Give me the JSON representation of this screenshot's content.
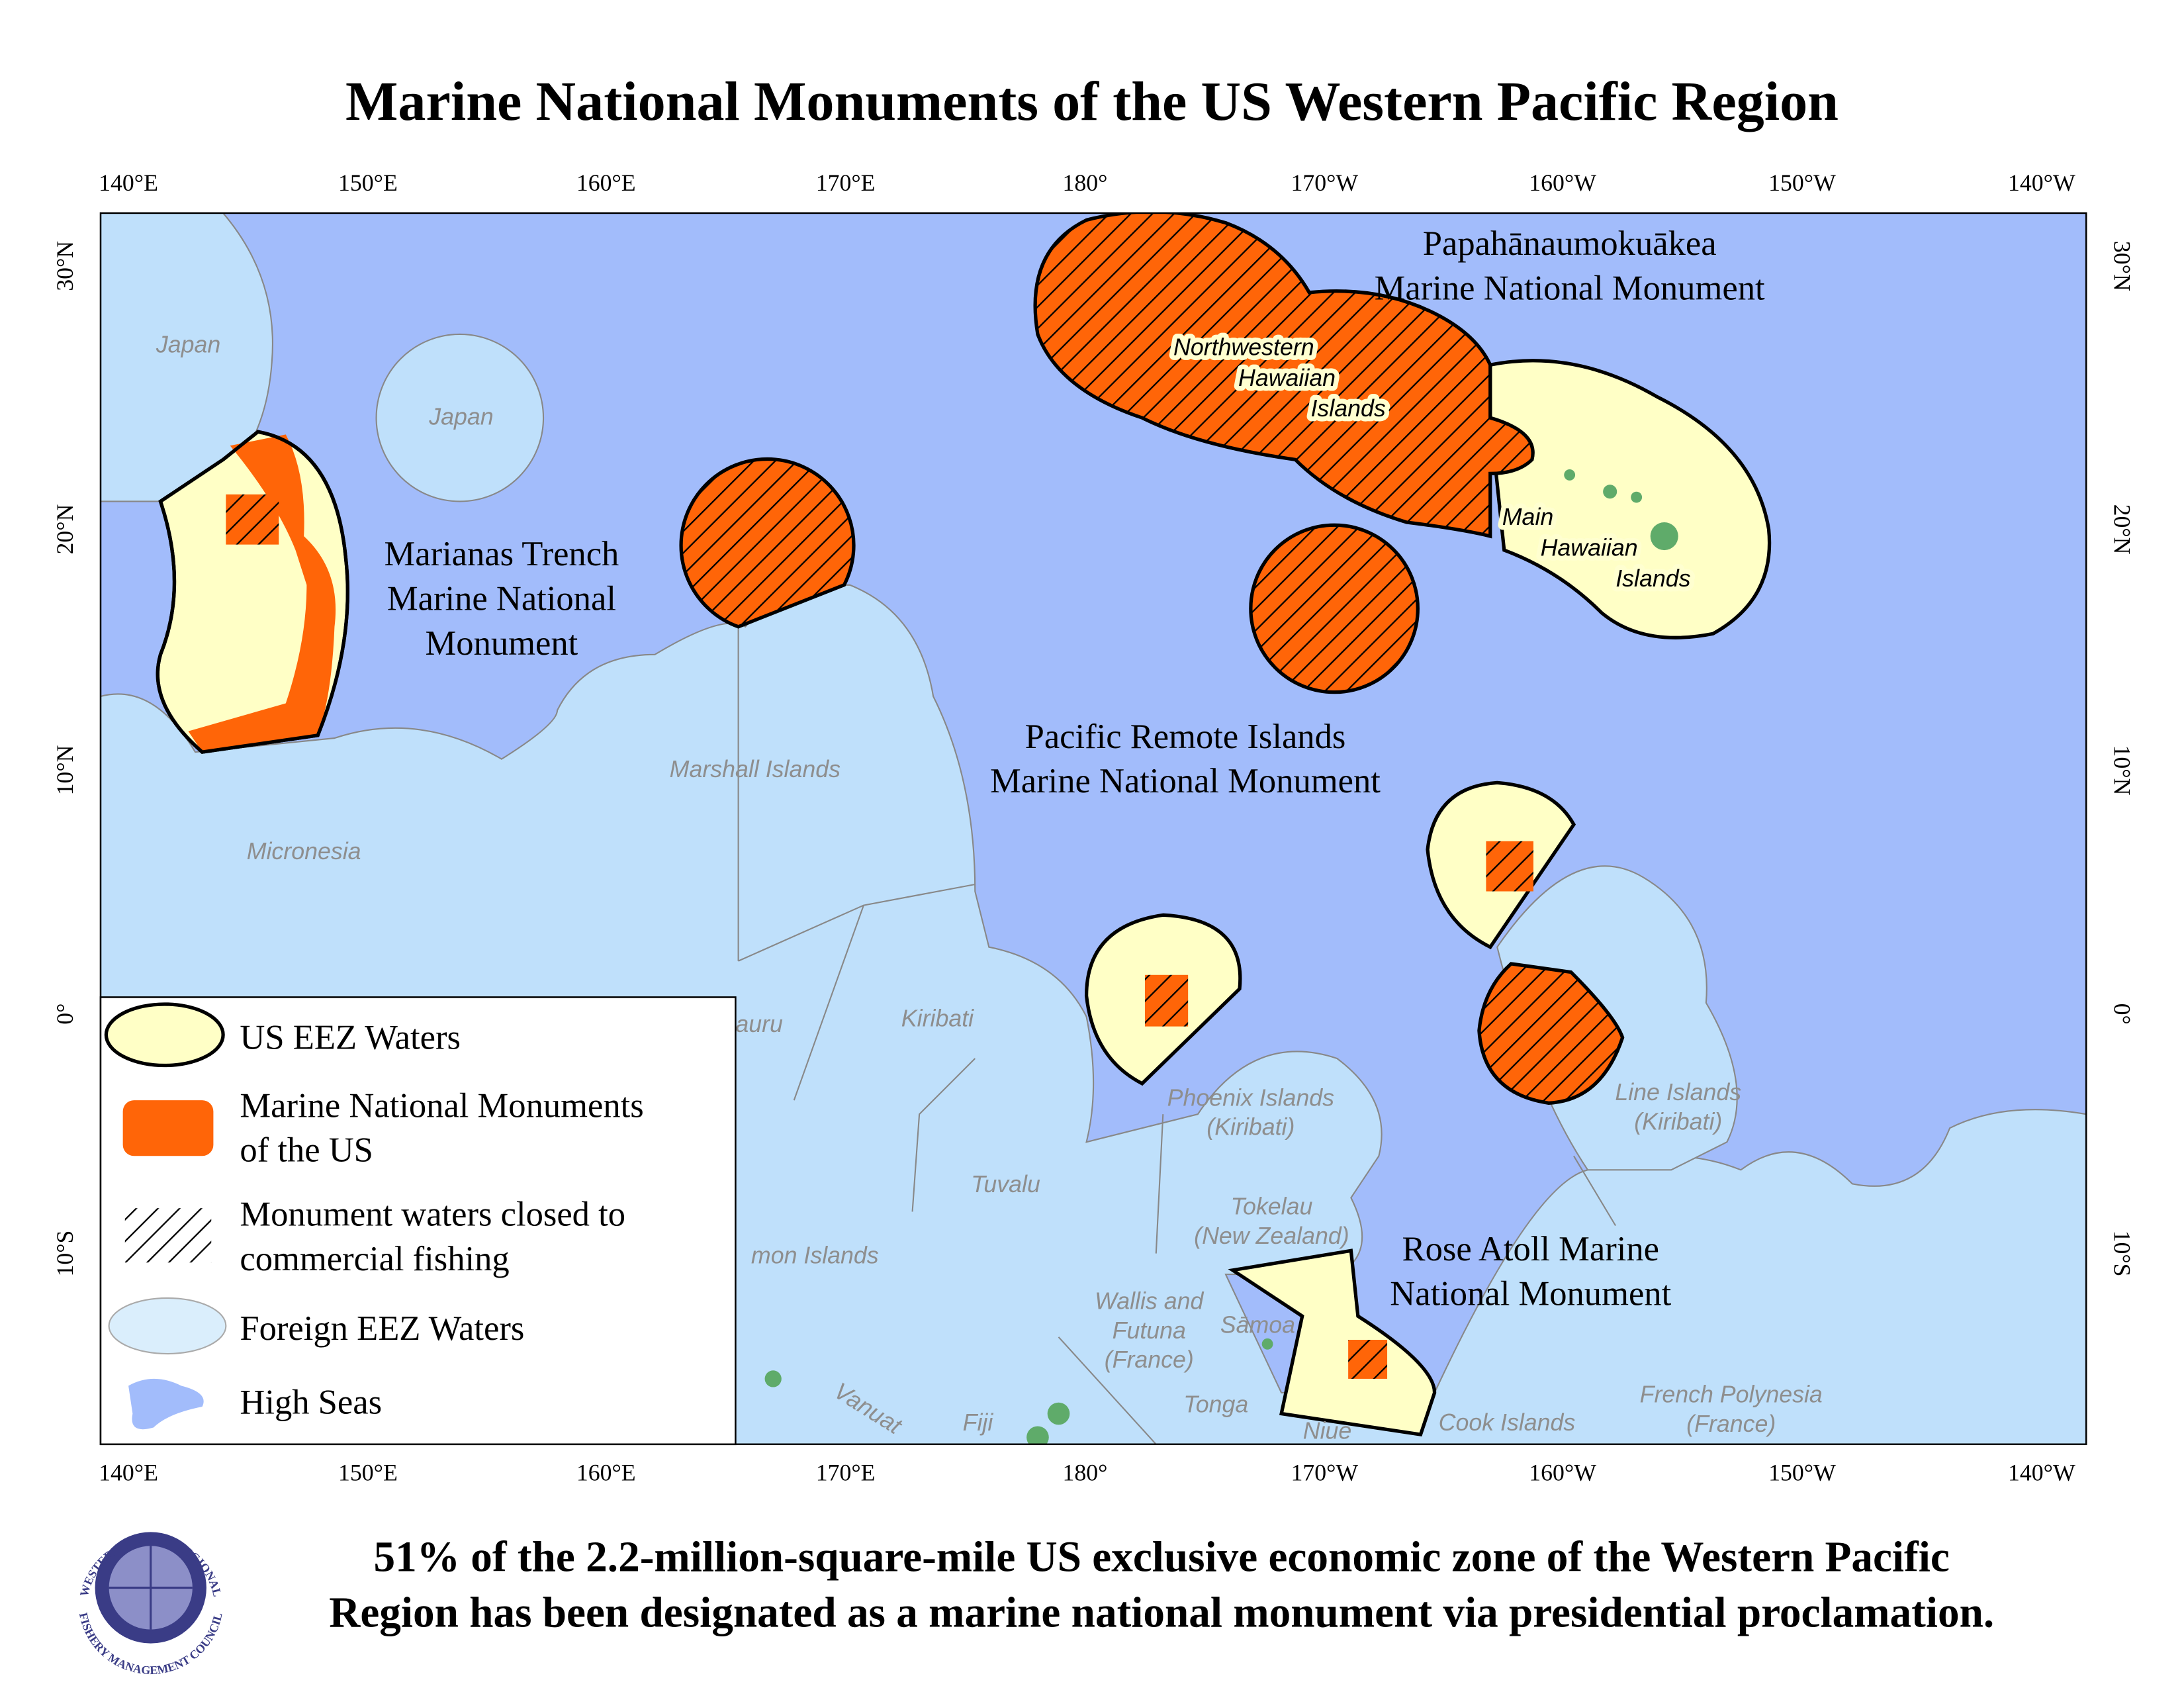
{
  "title": "Marine National Monuments of the US Western Pacific Region",
  "longitude_labels": [
    "140°E",
    "150°E",
    "160°E",
    "170°E",
    "180°",
    "170°W",
    "160°W",
    "150°W",
    "140°W"
  ],
  "latitude_labels": [
    "30°N",
    "20°N",
    "10°N",
    "0°",
    "10°S"
  ],
  "monuments": [
    [
      "Papahānaumokuākea",
      "Marine National Monument"
    ],
    [
      "Marianas Trench",
      "Marine National",
      "Monument"
    ],
    [
      "Pacific Remote Islands",
      "Marine National Monument"
    ],
    [
      "Rose Atoll Marine",
      "National Monument"
    ]
  ],
  "island_labels": [
    [
      "Northwestern",
      "Hawaiian",
      "Islands"
    ],
    [
      "Main",
      "Hawaiian",
      "Islands"
    ]
  ],
  "place_labels": [
    [
      "Japan"
    ],
    [
      "Japan"
    ],
    [
      "Marshall Islands"
    ],
    [
      "Micronesia"
    ],
    [
      "auru"
    ],
    [
      "Kiribati"
    ],
    [
      "Phoenix Islands",
      "(Kiribati)"
    ],
    [
      "Line Islands",
      "(Kiribati)"
    ],
    [
      "Tuvalu"
    ],
    [
      "Tokelau",
      "(New Zealand)"
    ],
    [
      "mon Islands"
    ],
    [
      "Wallis and",
      "Futuna",
      "(France)"
    ],
    [
      "Sāmoa"
    ],
    [
      "Tonga"
    ],
    [
      "Fiji"
    ],
    [
      "Niue"
    ],
    [
      "Cook Islands"
    ],
    [
      "French Polynesia",
      "(France)"
    ],
    [
      "Vanuat"
    ]
  ],
  "legend": [
    [
      "US EEZ Waters"
    ],
    [
      "Marine National Monuments",
      "of the US"
    ],
    [
      "Monument waters closed to",
      "commercial fishing"
    ],
    [
      "Foreign EEZ Waters"
    ],
    [
      "High Seas"
    ]
  ],
  "caption": [
    "51% of the 2.2-million-square-mile US exclusive economic zone of the Western Pacific",
    "Region has been designated as a marine national monument via presidential proclamation."
  ],
  "logo": [
    "WESTERN PACIFIC REGIONAL",
    "FISHERY MANAGEMENT COUNCIL"
  ]
}
